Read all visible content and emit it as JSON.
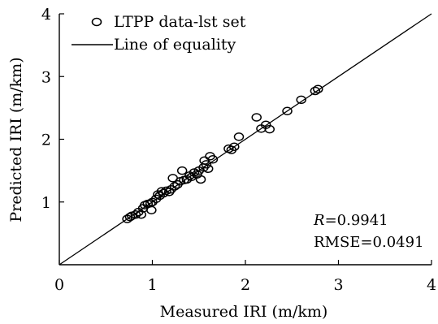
{
  "chart_data": {
    "type": "scatter",
    "xlabel": "Measured IRI (m/km)",
    "ylabel": "Predicted IRI (m/km)",
    "xlim": [
      0,
      4
    ],
    "ylim": [
      0,
      4
    ],
    "xticks": [
      "0",
      "1",
      "2",
      "3",
      "4"
    ],
    "yticks": [
      "1",
      "2",
      "3",
      "4"
    ],
    "grid": false,
    "legend_position": "top-left",
    "series": [
      {
        "name": "LTPP data-lst set",
        "marker": "open-circle",
        "points": [
          [
            0.73,
            0.73
          ],
          [
            0.76,
            0.76
          ],
          [
            0.78,
            0.78
          ],
          [
            0.82,
            0.8
          ],
          [
            0.85,
            0.84
          ],
          [
            0.88,
            0.8
          ],
          [
            0.9,
            0.9
          ],
          [
            0.92,
            0.95
          ],
          [
            0.95,
            0.97
          ],
          [
            0.98,
            0.98
          ],
          [
            0.99,
            0.87
          ],
          [
            1.0,
            1.0
          ],
          [
            1.04,
            1.05
          ],
          [
            1.06,
            1.12
          ],
          [
            1.08,
            1.1
          ],
          [
            1.1,
            1.17
          ],
          [
            1.12,
            1.14
          ],
          [
            1.15,
            1.18
          ],
          [
            1.18,
            1.16
          ],
          [
            1.2,
            1.2
          ],
          [
            1.22,
            1.38
          ],
          [
            1.24,
            1.25
          ],
          [
            1.27,
            1.28
          ],
          [
            1.3,
            1.33
          ],
          [
            1.32,
            1.5
          ],
          [
            1.34,
            1.35
          ],
          [
            1.37,
            1.36
          ],
          [
            1.4,
            1.42
          ],
          [
            1.42,
            1.4
          ],
          [
            1.45,
            1.47
          ],
          [
            1.48,
            1.44
          ],
          [
            1.5,
            1.5
          ],
          [
            1.52,
            1.36
          ],
          [
            1.55,
            1.55
          ],
          [
            1.56,
            1.66
          ],
          [
            1.58,
            1.6
          ],
          [
            1.6,
            1.53
          ],
          [
            1.62,
            1.73
          ],
          [
            1.65,
            1.68
          ],
          [
            1.82,
            1.85
          ],
          [
            1.85,
            1.83
          ],
          [
            1.88,
            1.88
          ],
          [
            1.93,
            2.04
          ],
          [
            2.12,
            2.35
          ],
          [
            2.17,
            2.17
          ],
          [
            2.22,
            2.23
          ],
          [
            2.26,
            2.16
          ],
          [
            2.45,
            2.45
          ],
          [
            2.6,
            2.63
          ],
          [
            2.75,
            2.77
          ],
          [
            2.78,
            2.8
          ]
        ]
      },
      {
        "name": "Line of equality",
        "type": "line",
        "points": [
          [
            0,
            0
          ],
          [
            4,
            4
          ]
        ]
      }
    ],
    "annotations": {
      "r_symbol": "R",
      "r_value": "=0.9941",
      "rmse": "RMSE=0.0491"
    }
  }
}
